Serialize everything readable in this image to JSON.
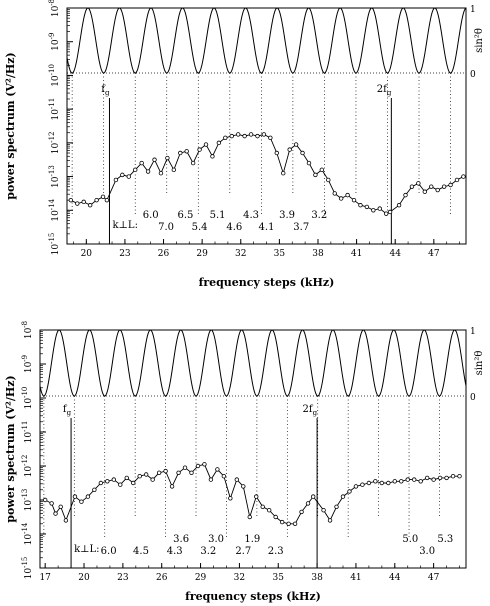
{
  "chart_data": [
    {
      "type": "scatter",
      "xlabel": "frequency steps (kHz)",
      "ylabel": "power spectrum (V²/Hz)",
      "y2label": "sin²θ",
      "y2ticks": [
        "1",
        "0"
      ],
      "xlim": [
        18.5,
        49.5
      ],
      "ylog": true,
      "ylim_exp": [
        -15,
        -8
      ],
      "y_ticks": [
        {
          "pre": "10",
          "exp": "-15"
        },
        {
          "pre": "10",
          "exp": "-14"
        },
        {
          "pre": "10",
          "exp": "-13"
        },
        {
          "pre": "10",
          "exp": "-12"
        },
        {
          "pre": "10",
          "exp": "-11"
        },
        {
          "pre": "10",
          "exp": "-10"
        },
        {
          "pre": "10",
          "exp": "-9"
        },
        {
          "pre": "10",
          "exp": "-8"
        }
      ],
      "x_ticks": [
        20,
        23,
        26,
        29,
        32,
        35,
        38,
        41,
        44,
        47
      ],
      "sin_period": 2.45,
      "sin_phase": 18.9,
      "markers": [
        {
          "label": "f",
          "sub": "g",
          "x": 21.8
        },
        {
          "label": "2f",
          "sub": "g",
          "x": 43.7
        }
      ],
      "kperp_label": "k⊥L:",
      "annotations": [
        {
          "text": "6.0",
          "x": 25.0,
          "row": 0
        },
        {
          "text": "6.5",
          "x": 27.7,
          "row": 0
        },
        {
          "text": "5.1",
          "x": 30.2,
          "row": 0
        },
        {
          "text": "4.3",
          "x": 32.8,
          "row": 0
        },
        {
          "text": "3.9",
          "x": 35.6,
          "row": 0
        },
        {
          "text": "3.2",
          "x": 38.1,
          "row": 0
        },
        {
          "text": "7.0",
          "x": 26.2,
          "row": 1
        },
        {
          "text": "5.4",
          "x": 28.8,
          "row": 1
        },
        {
          "text": "4.6",
          "x": 31.5,
          "row": 1
        },
        {
          "text": "4.1",
          "x": 34.0,
          "row": 1
        },
        {
          "text": "3.7",
          "x": 36.7,
          "row": 1
        }
      ],
      "series": [
        {
          "values": [
            [
              18.8,
              -13.7
            ],
            [
              19.3,
              -13.8
            ],
            [
              19.8,
              -13.75
            ],
            [
              20.3,
              -13.85
            ],
            [
              20.8,
              -13.7
            ],
            [
              21.3,
              -13.6
            ],
            [
              21.6,
              -13.7
            ],
            [
              22.3,
              -13.1
            ],
            [
              22.8,
              -12.95
            ],
            [
              23.3,
              -13.0
            ],
            [
              23.8,
              -12.8
            ],
            [
              24.3,
              -12.6
            ],
            [
              24.8,
              -12.85
            ],
            [
              25.3,
              -12.5
            ],
            [
              25.8,
              -12.9
            ],
            [
              26.3,
              -12.45
            ],
            [
              26.8,
              -12.8
            ],
            [
              27.3,
              -12.3
            ],
            [
              27.8,
              -12.25
            ],
            [
              28.3,
              -12.6
            ],
            [
              28.8,
              -12.2
            ],
            [
              29.3,
              -12.05
            ],
            [
              29.8,
              -12.4
            ],
            [
              30.3,
              -12.0
            ],
            [
              30.8,
              -11.85
            ],
            [
              31.3,
              -11.8
            ],
            [
              31.8,
              -11.75
            ],
            [
              32.3,
              -11.8
            ],
            [
              32.8,
              -11.75
            ],
            [
              33.3,
              -11.8
            ],
            [
              33.8,
              -11.75
            ],
            [
              34.3,
              -11.85
            ],
            [
              34.8,
              -12.3
            ],
            [
              35.3,
              -12.9
            ],
            [
              35.8,
              -12.2
            ],
            [
              36.3,
              -12.05
            ],
            [
              36.8,
              -12.3
            ],
            [
              37.3,
              -12.6
            ],
            [
              37.8,
              -12.95
            ],
            [
              38.3,
              -12.8
            ],
            [
              38.8,
              -13.1
            ],
            [
              39.3,
              -13.5
            ],
            [
              39.8,
              -13.65
            ],
            [
              40.3,
              -13.55
            ],
            [
              40.8,
              -13.7
            ],
            [
              41.3,
              -13.85
            ],
            [
              41.8,
              -13.9
            ],
            [
              42.3,
              -14.0
            ],
            [
              42.8,
              -13.95
            ],
            [
              43.3,
              -14.1
            ],
            [
              43.6,
              -14.05
            ],
            [
              44.3,
              -13.85
            ],
            [
              44.8,
              -13.55
            ],
            [
              45.3,
              -13.3
            ],
            [
              45.8,
              -13.2
            ],
            [
              46.3,
              -13.45
            ],
            [
              46.8,
              -13.3
            ],
            [
              47.3,
              -13.4
            ],
            [
              47.8,
              -13.3
            ],
            [
              48.3,
              -13.25
            ],
            [
              48.8,
              -13.1
            ],
            [
              49.3,
              -13.0
            ]
          ]
        }
      ]
    },
    {
      "type": "scatter",
      "xlabel": "frequency steps (kHz)",
      "ylabel": "power spectrum (V²/Hz)",
      "y2label": "sin²θ",
      "y2ticks": [
        "1",
        "0"
      ],
      "xlim": [
        16.6,
        49.5
      ],
      "ylog": true,
      "ylim_exp": [
        -15,
        -8
      ],
      "y_ticks": [
        {
          "pre": "10",
          "exp": "-15"
        },
        {
          "pre": "10",
          "exp": "-14"
        },
        {
          "pre": "10",
          "exp": "-13"
        },
        {
          "pre": "10",
          "exp": "-12"
        },
        {
          "pre": "10",
          "exp": "-11"
        },
        {
          "pre": "10",
          "exp": "-10"
        },
        {
          "pre": "10",
          "exp": "-9"
        },
        {
          "pre": "10",
          "exp": "-8"
        }
      ],
      "x_ticks": [
        17,
        20,
        23,
        26,
        29,
        32,
        35,
        38,
        41,
        44,
        47
      ],
      "sin_period": 2.35,
      "sin_phase": 16.9,
      "markers": [
        {
          "label": "f",
          "sub": "g",
          "x": 19.0
        },
        {
          "label": "2f",
          "sub": "g",
          "x": 38.0
        }
      ],
      "kperp_label": "k⊥L:",
      "annotations": [
        {
          "text": "3.6",
          "x": 27.5,
          "row": 0
        },
        {
          "text": "3.0",
          "x": 30.2,
          "row": 0
        },
        {
          "text": "1.9",
          "x": 33.0,
          "row": 0
        },
        {
          "text": "5.0",
          "x": 45.2,
          "row": 0
        },
        {
          "text": "5.3",
          "x": 47.9,
          "row": 0
        },
        {
          "text": "6.0",
          "x": 21.9,
          "row": 1
        },
        {
          "text": "4.5",
          "x": 24.4,
          "row": 1
        },
        {
          "text": "4.3",
          "x": 27.0,
          "row": 1
        },
        {
          "text": "3.2",
          "x": 29.6,
          "row": 1
        },
        {
          "text": "2.7",
          "x": 32.3,
          "row": 1
        },
        {
          "text": "2.3",
          "x": 34.8,
          "row": 1
        },
        {
          "text": "3.0",
          "x": 46.5,
          "row": 1
        }
      ],
      "series": [
        {
          "values": [
            [
              17.0,
              -13.0
            ],
            [
              17.5,
              -13.1
            ],
            [
              17.8,
              -13.4
            ],
            [
              18.2,
              -13.2
            ],
            [
              18.6,
              -13.6
            ],
            [
              19.3,
              -12.9
            ],
            [
              19.8,
              -13.05
            ],
            [
              20.3,
              -12.9
            ],
            [
              20.8,
              -12.7
            ],
            [
              21.3,
              -12.5
            ],
            [
              21.8,
              -12.45
            ],
            [
              22.3,
              -12.4
            ],
            [
              22.8,
              -12.55
            ],
            [
              23.3,
              -12.35
            ],
            [
              23.8,
              -12.5
            ],
            [
              24.3,
              -12.3
            ],
            [
              24.8,
              -12.25
            ],
            [
              25.3,
              -12.4
            ],
            [
              25.8,
              -12.2
            ],
            [
              26.3,
              -12.15
            ],
            [
              26.8,
              -12.6
            ],
            [
              27.3,
              -12.2
            ],
            [
              27.8,
              -12.05
            ],
            [
              28.3,
              -12.2
            ],
            [
              28.8,
              -12.0
            ],
            [
              29.3,
              -11.95
            ],
            [
              29.8,
              -12.4
            ],
            [
              30.3,
              -12.1
            ],
            [
              30.8,
              -12.3
            ],
            [
              31.3,
              -12.95
            ],
            [
              31.8,
              -12.4
            ],
            [
              32.3,
              -12.6
            ],
            [
              32.8,
              -13.5
            ],
            [
              33.3,
              -12.9
            ],
            [
              33.8,
              -13.2
            ],
            [
              34.3,
              -13.3
            ],
            [
              34.8,
              -13.5
            ],
            [
              35.3,
              -13.65
            ],
            [
              35.8,
              -13.7
            ],
            [
              36.3,
              -13.7
            ],
            [
              36.8,
              -13.35
            ],
            [
              37.3,
              -13.1
            ],
            [
              37.7,
              -12.9
            ],
            [
              38.5,
              -13.3
            ],
            [
              39.0,
              -13.6
            ],
            [
              39.5,
              -13.2
            ],
            [
              40.0,
              -12.9
            ],
            [
              40.5,
              -12.75
            ],
            [
              41.0,
              -12.6
            ],
            [
              41.5,
              -12.55
            ],
            [
              42.0,
              -12.5
            ],
            [
              42.5,
              -12.45
            ],
            [
              43.0,
              -12.5
            ],
            [
              43.5,
              -12.5
            ],
            [
              44.0,
              -12.45
            ],
            [
              44.5,
              -12.45
            ],
            [
              45.0,
              -12.4
            ],
            [
              45.5,
              -12.4
            ],
            [
              46.0,
              -12.45
            ],
            [
              46.5,
              -12.35
            ],
            [
              47.0,
              -12.4
            ],
            [
              47.5,
              -12.35
            ],
            [
              48.0,
              -12.35
            ],
            [
              48.5,
              -12.3
            ],
            [
              49.0,
              -12.3
            ]
          ]
        }
      ]
    }
  ]
}
